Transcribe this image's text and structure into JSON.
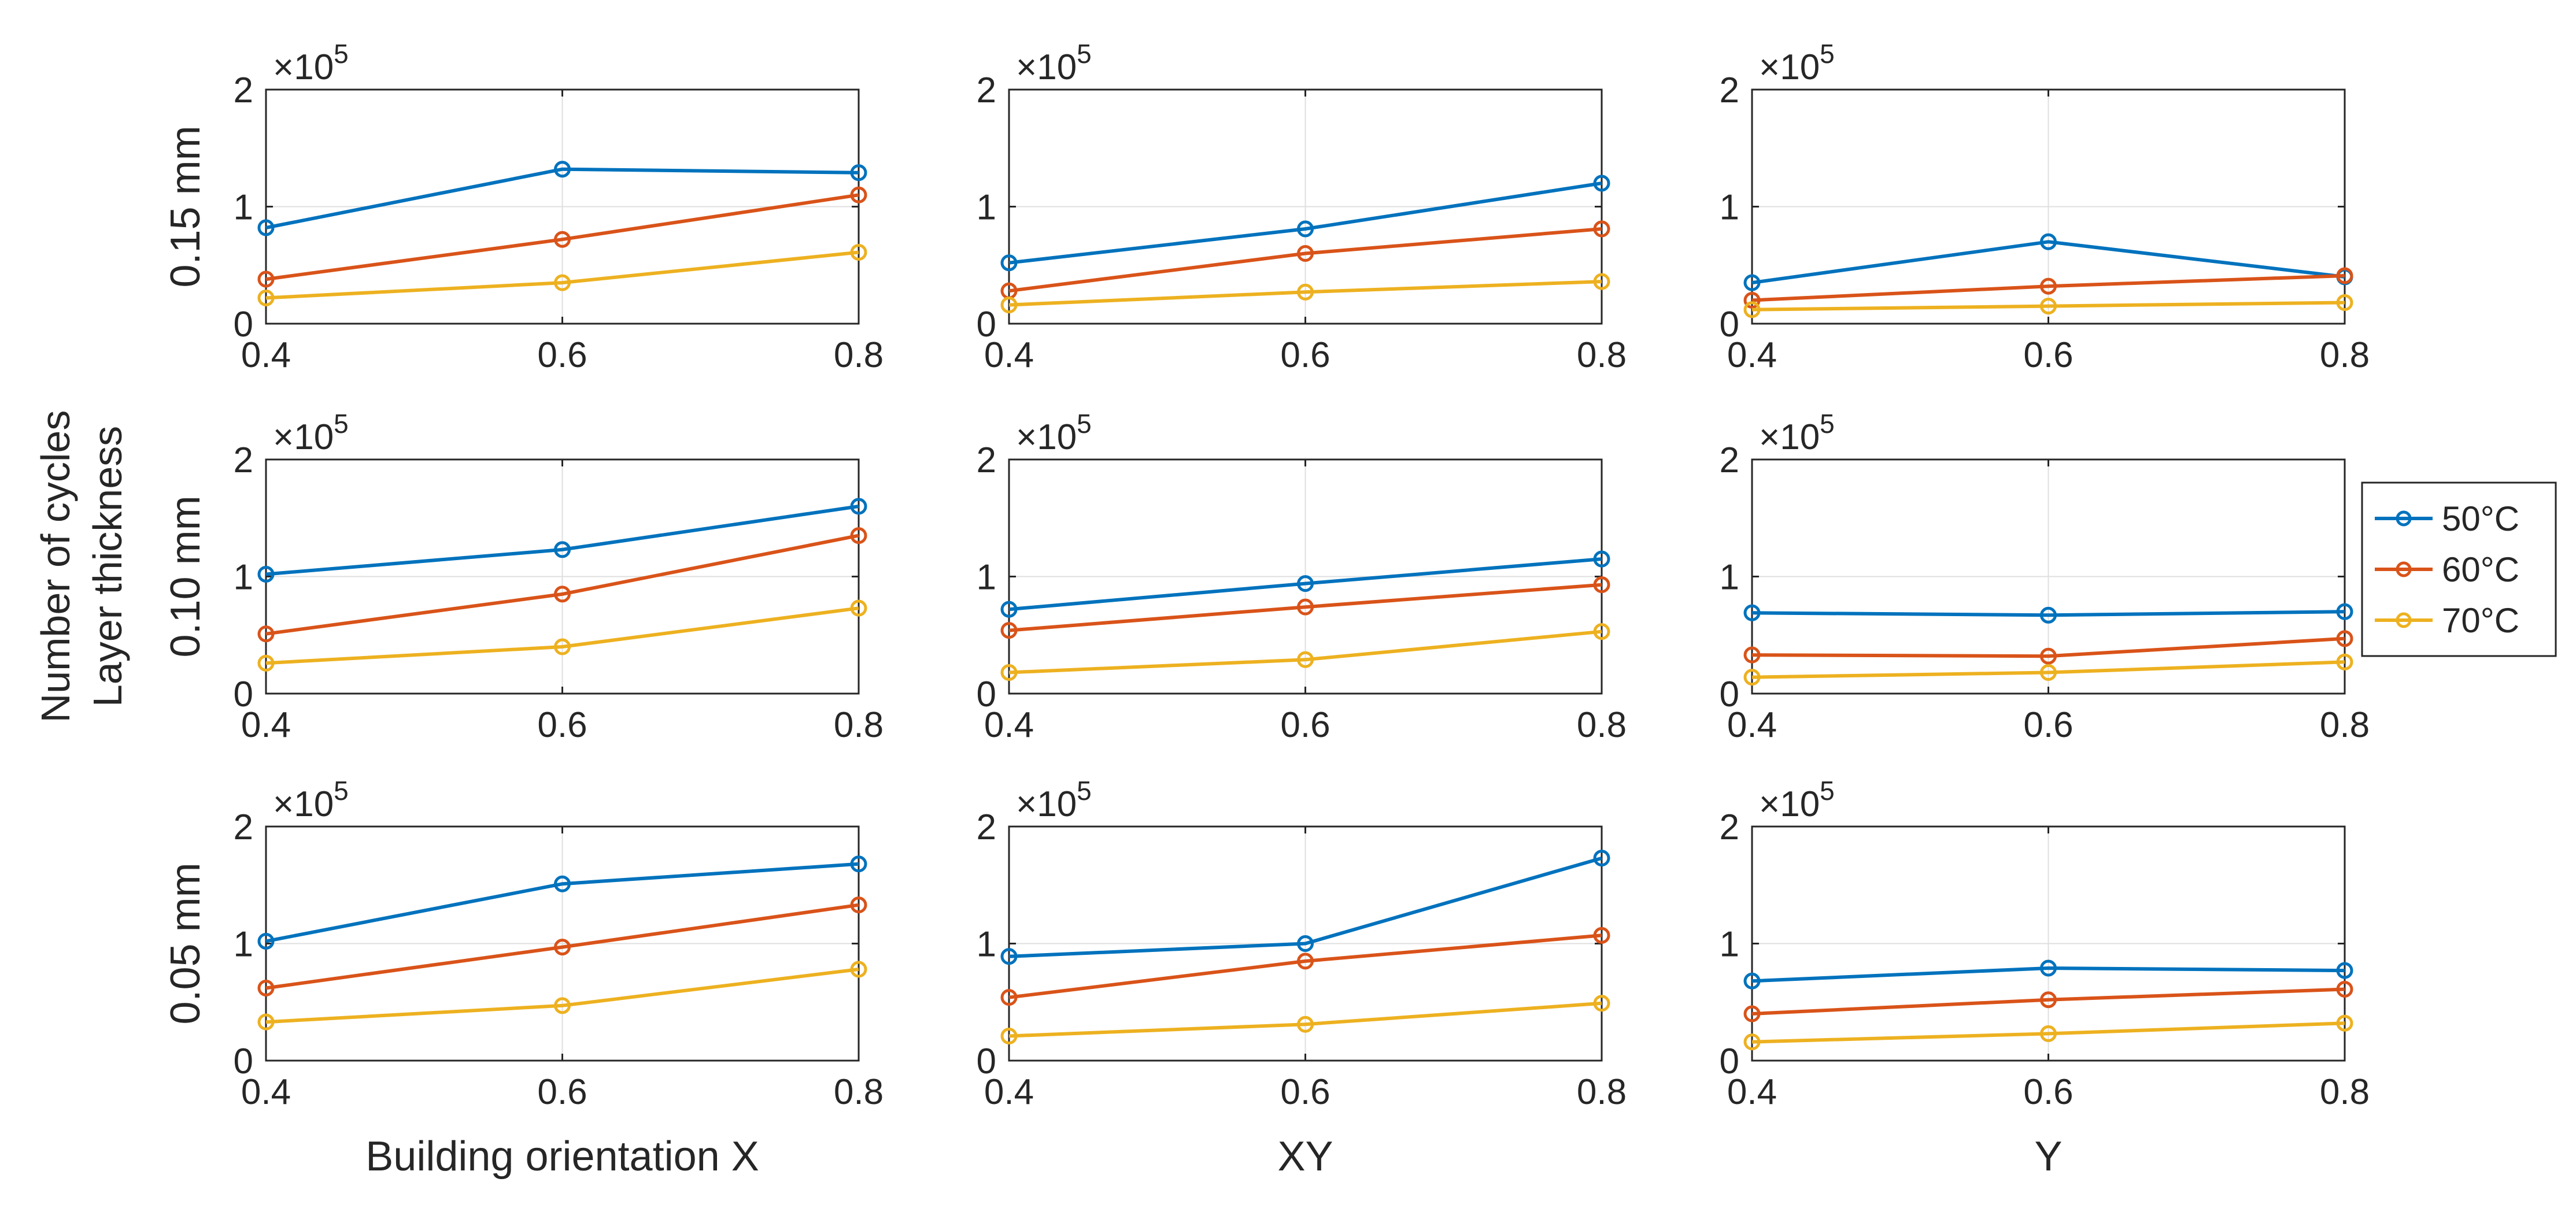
{
  "chart_data": {
    "type": "line",
    "layout": "3x3 grid of line subplots",
    "global_ylabel": [
      "Number of cycles",
      "Layer thickness"
    ],
    "x_ticks": [
      "0.4",
      "0.6",
      "0.8"
    ],
    "x": [
      0.4,
      0.6,
      0.8
    ],
    "y_ticks": [
      "0",
      "1",
      "2"
    ],
    "ylim": [
      0,
      2
    ],
    "y_multiplier_base": "×10",
    "y_multiplier_exp": "5",
    "grid": true,
    "row_labels": [
      "0.15 mm",
      "0.10 mm",
      "0.05 mm"
    ],
    "column_labels": [
      "Building orientation X",
      "XY",
      "Y"
    ],
    "series_names": [
      "50°C",
      "60°C",
      "70°C"
    ],
    "series_colors": [
      "#0072BD",
      "#D95319",
      "#EDB120"
    ],
    "legend_location": "right of middle-right subplot",
    "panels": [
      {
        "row": 0,
        "col": 0,
        "series": [
          {
            "name": "50°C",
            "values": [
              0.82,
              1.32,
              1.29
            ]
          },
          {
            "name": "60°C",
            "values": [
              0.38,
              0.72,
              1.1
            ]
          },
          {
            "name": "70°C",
            "values": [
              0.22,
              0.35,
              0.61
            ]
          }
        ]
      },
      {
        "row": 0,
        "col": 1,
        "series": [
          {
            "name": "50°C",
            "values": [
              0.52,
              0.81,
              1.2
            ]
          },
          {
            "name": "60°C",
            "values": [
              0.28,
              0.6,
              0.81
            ]
          },
          {
            "name": "70°C",
            "values": [
              0.16,
              0.27,
              0.36
            ]
          }
        ]
      },
      {
        "row": 0,
        "col": 2,
        "series": [
          {
            "name": "50°C",
            "values": [
              0.35,
              0.7,
              0.4
            ]
          },
          {
            "name": "60°C",
            "values": [
              0.2,
              0.32,
              0.41
            ]
          },
          {
            "name": "70°C",
            "values": [
              0.12,
              0.15,
              0.18
            ]
          }
        ]
      },
      {
        "row": 1,
        "col": 0,
        "series": [
          {
            "name": "50°C",
            "values": [
              1.02,
              1.23,
              1.6
            ]
          },
          {
            "name": "60°C",
            "values": [
              0.51,
              0.85,
              1.35
            ]
          },
          {
            "name": "70°C",
            "values": [
              0.26,
              0.4,
              0.73
            ]
          }
        ]
      },
      {
        "row": 1,
        "col": 1,
        "series": [
          {
            "name": "50°C",
            "values": [
              0.72,
              0.94,
              1.15
            ]
          },
          {
            "name": "60°C",
            "values": [
              0.54,
              0.74,
              0.93
            ]
          },
          {
            "name": "70°C",
            "values": [
              0.18,
              0.29,
              0.53
            ]
          }
        ]
      },
      {
        "row": 1,
        "col": 2,
        "series": [
          {
            "name": "50°C",
            "values": [
              0.69,
              0.67,
              0.7
            ]
          },
          {
            "name": "60°C",
            "values": [
              0.33,
              0.32,
              0.47
            ]
          },
          {
            "name": "70°C",
            "values": [
              0.14,
              0.18,
              0.27
            ]
          }
        ]
      },
      {
        "row": 2,
        "col": 0,
        "series": [
          {
            "name": "50°C",
            "values": [
              1.02,
              1.51,
              1.68
            ]
          },
          {
            "name": "60°C",
            "values": [
              0.62,
              0.97,
              1.33
            ]
          },
          {
            "name": "70°C",
            "values": [
              0.33,
              0.47,
              0.78
            ]
          }
        ]
      },
      {
        "row": 2,
        "col": 1,
        "series": [
          {
            "name": "50°C",
            "values": [
              0.89,
              1.0,
              1.73
            ]
          },
          {
            "name": "60°C",
            "values": [
              0.54,
              0.85,
              1.07
            ]
          },
          {
            "name": "70°C",
            "values": [
              0.21,
              0.31,
              0.49
            ]
          }
        ]
      },
      {
        "row": 2,
        "col": 2,
        "series": [
          {
            "name": "50°C",
            "values": [
              0.68,
              0.79,
              0.77
            ]
          },
          {
            "name": "60°C",
            "values": [
              0.4,
              0.52,
              0.61
            ]
          },
          {
            "name": "70°C",
            "values": [
              0.16,
              0.23,
              0.32
            ]
          }
        ]
      }
    ]
  }
}
